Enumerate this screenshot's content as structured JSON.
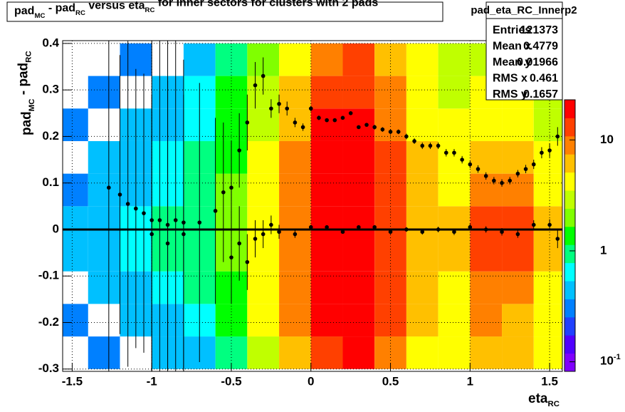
{
  "chart_data": {
    "type": "heatmap-profile",
    "title_parts": [
      "pad",
      "MC",
      " - pad",
      "RC",
      " versus eta",
      "RC",
      " for Inner sectors for clusters with 2 pads"
    ],
    "x_label_parts": [
      "eta",
      "RC"
    ],
    "y_label_parts": [
      "pad",
      "MC",
      " - pad",
      "RC"
    ],
    "stats": {
      "name": "pad_eta_RC_Innerp2",
      "rows": [
        [
          "Entries",
          "121373"
        ],
        [
          "Mean x",
          "0.4779"
        ],
        [
          "Mean y",
          "0.01966"
        ],
        [
          "RMS x",
          "0.461"
        ],
        [
          "RMS y",
          "0.1657"
        ]
      ]
    },
    "xlim": [
      -1.56,
      1.58
    ],
    "ylim": [
      -0.305,
      0.406
    ],
    "xticks": [
      -1.5,
      -1,
      -0.5,
      0,
      0.5,
      1,
      1.5
    ],
    "yticks": [
      -0.3,
      -0.2,
      -0.1,
      0,
      0.1,
      0.2,
      0.3,
      0.4
    ],
    "grid": true,
    "log_z": true,
    "zlim": [
      0.082,
      23
    ],
    "zticks": [
      {
        "value": 0.1,
        "label": "10",
        "superscript": "-1"
      },
      1,
      10
    ],
    "palette": [
      "#8000ff",
      "#5000ff",
      "#2040ff",
      "#0080ff",
      "#00c0ff",
      "#00ffff",
      "#00ff80",
      "#00ff00",
      "#80ff00",
      "#c0ff00",
      "#ffff00",
      "#ffc000",
      "#ff8000",
      "#ff4000",
      "#ff0000"
    ],
    "xbins": [
      -1.6,
      -1.4,
      -1.2,
      -1.0,
      -0.8,
      -0.6,
      -0.4,
      -0.2,
      0,
      0.2,
      0.4,
      0.6,
      0.8,
      1.0,
      1.2,
      1.4,
      1.6
    ],
    "ybins": [
      -0.3,
      -0.23,
      -0.16,
      -0.09,
      -0.02,
      0.05,
      0.12,
      0.19,
      0.26,
      0.33,
      0.4
    ],
    "z": [
      [
        0,
        0.3,
        0,
        0.5,
        0.5,
        1,
        3,
        7,
        15,
        16,
        9,
        5,
        4,
        6,
        6,
        4
      ],
      [
        0.3,
        0,
        0.5,
        0.5,
        0.7,
        1.5,
        4,
        8,
        18,
        19,
        11,
        6,
        5,
        8,
        7,
        4
      ],
      [
        0,
        0.4,
        0.5,
        0.7,
        0.8,
        1.6,
        4,
        9,
        20,
        21,
        12,
        6,
        5,
        9,
        9,
        5
      ],
      [
        0.4,
        0.5,
        0.6,
        0.8,
        1,
        2,
        5,
        10,
        21,
        22,
        13,
        7,
        6,
        14,
        13,
        6
      ],
      [
        0.5,
        0.5,
        0.7,
        0.8,
        1,
        2,
        5,
        10,
        21,
        22,
        13,
        7,
        6,
        13,
        12,
        6
      ],
      [
        0.3,
        0.4,
        0.5,
        0.7,
        0.9,
        1.7,
        4,
        9,
        20,
        21,
        12,
        6,
        5,
        9,
        8,
        5
      ],
      [
        0,
        0.4,
        0.5,
        0.6,
        0.8,
        1.5,
        4,
        8,
        19,
        20,
        11,
        6,
        5,
        7,
        6,
        4
      ],
      [
        0.3,
        0,
        0.5,
        0.5,
        0.7,
        1.3,
        3,
        7,
        17,
        18,
        10,
        5,
        4,
        5,
        5,
        3
      ],
      [
        0,
        0.3,
        0,
        0.5,
        0.6,
        1.2,
        3,
        6,
        14,
        15,
        8,
        5,
        3,
        4,
        4,
        3
      ],
      [
        0,
        0,
        0.3,
        0,
        0.5,
        1,
        2,
        5,
        10,
        11,
        6,
        4,
        3,
        3,
        3,
        2
      ]
    ],
    "reference_line": 0,
    "series": [
      {
        "color": "#000000",
        "x": [
          -1.27,
          -1.2,
          -1.15,
          -1.1,
          -1.05,
          -1.0,
          -0.95,
          -0.9,
          -0.85,
          -0.8,
          -0.7,
          -0.6,
          -0.55,
          -0.5,
          -0.45,
          -0.4,
          -0.35,
          -0.3,
          -0.25,
          -0.2,
          -0.15,
          -0.1,
          -0.05,
          0,
          0.05,
          0.1,
          0.15,
          0.2,
          0.25,
          0.3,
          0.35,
          0.4,
          0.45,
          0.5,
          0.55,
          0.6,
          0.65,
          0.7,
          0.75,
          0.8,
          0.85,
          0.9,
          0.95,
          1.0,
          1.05,
          1.1,
          1.15,
          1.2,
          1.25,
          1.3,
          1.35,
          1.4,
          1.45,
          1.5,
          1.55
        ],
        "y": [
          0.09,
          0.075,
          0.055,
          0.045,
          0.035,
          0.02,
          0.02,
          0.01,
          0.02,
          0.015,
          0.015,
          0.04,
          0.08,
          0.09,
          0.17,
          0.23,
          0.31,
          0.33,
          0.26,
          0.27,
          0.26,
          0.23,
          0.22,
          0.26,
          0.24,
          0.235,
          0.235,
          0.24,
          0.25,
          0.22,
          0.225,
          0.22,
          0.215,
          0.21,
          0.21,
          0.2,
          0.19,
          0.18,
          0.18,
          0.18,
          0.165,
          0.165,
          0.15,
          0.14,
          0.13,
          0.115,
          0.105,
          0.1,
          0.105,
          0.12,
          0.13,
          0.14,
          0.165,
          0.17,
          0.2
        ],
        "errors": [
          0.4,
          0.3,
          0.35,
          0.3,
          0.3,
          0.4,
          0.4,
          0.4,
          0.4,
          0.35,
          0.3,
          0.2,
          0.15,
          0.1,
          0.08,
          0.06,
          0.05,
          0.04,
          0.02,
          0.02,
          0.015,
          0.01,
          0.008,
          0.006,
          0.005,
          0.004,
          0.004,
          0.004,
          0.004,
          0.004,
          0.004,
          0.005,
          0.005,
          0.005,
          0.005,
          0.006,
          0.006,
          0.007,
          0.007,
          0.007,
          0.008,
          0.008,
          0.008,
          0.008,
          0.008,
          0.008,
          0.008,
          0.008,
          0.008,
          0.008,
          0.009,
          0.01,
          0.012,
          0.015,
          0.02
        ]
      },
      {
        "color": "#000000",
        "x": [
          -1.0,
          -0.9,
          -0.8,
          -0.5,
          -0.45,
          -0.4,
          -0.35,
          -0.3,
          -0.25,
          -0.2,
          -0.1,
          0,
          0.1,
          0.2,
          0.3,
          0.4,
          0.5,
          0.6,
          0.7,
          0.8,
          0.9,
          1.0,
          1.1,
          1.2,
          1.3,
          1.4,
          1.5,
          1.55
        ],
        "y": [
          -0.01,
          -0.03,
          -0.01,
          -0.06,
          -0.03,
          -0.07,
          -0.02,
          -0.01,
          0.01,
          -0.005,
          -0.01,
          0.005,
          0.005,
          -0.005,
          0.005,
          0.005,
          -0.005,
          0.0,
          -0.005,
          0.0,
          -0.005,
          0.005,
          0.0,
          -0.005,
          -0.01,
          0.01,
          0.01,
          -0.02
        ],
        "errors": [
          0.3,
          0.35,
          0.3,
          0.1,
          0.08,
          0.06,
          0.04,
          0.03,
          0.02,
          0.015,
          0.008,
          0.005,
          0.004,
          0.004,
          0.004,
          0.004,
          0.005,
          0.005,
          0.006,
          0.006,
          0.007,
          0.007,
          0.007,
          0.008,
          0.008,
          0.01,
          0.012,
          0.02
        ]
      }
    ]
  }
}
